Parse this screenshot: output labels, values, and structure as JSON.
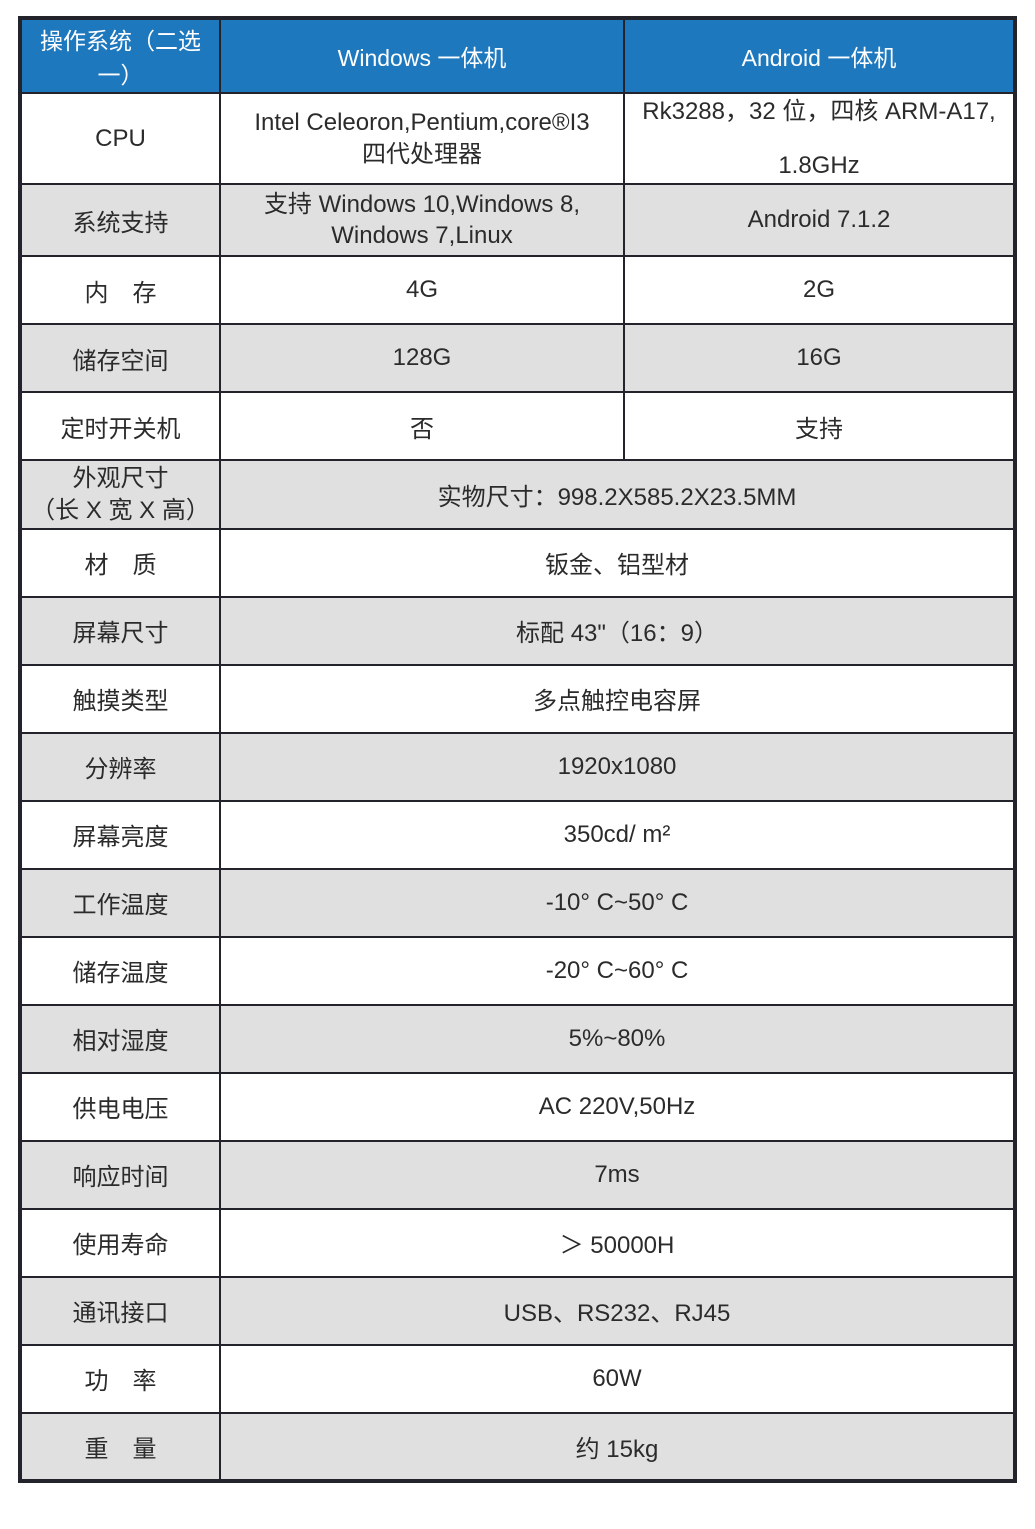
{
  "colors": {
    "header_bg": "#1E78BE",
    "header_text": "#FFFFFF",
    "row_white": "#FFFFFF",
    "row_gray": "#E0E0E0",
    "border": "#23232B",
    "text": "#2B2B2B"
  },
  "table": {
    "header": {
      "os": "操作系统（二选一）",
      "windows": "Windows 一体机",
      "android": "Android 一体机"
    },
    "rows": [
      {
        "label": "CPU",
        "windows_line1": "Intel Celeoron,Pentium,core®I3",
        "windows_line2": "四代处理器",
        "android_line1": "Rk3288，32 位，四核 ARM-A17,",
        "android_line2": "1.8GHz"
      },
      {
        "label": "系统支持",
        "windows_line1": "支持 Windows 10,Windows 8,",
        "windows_line2": "Windows 7,Linux",
        "android": "Android 7.1.2"
      },
      {
        "label": "内　存",
        "windows": "4G",
        "android": "2G"
      },
      {
        "label": "储存空间",
        "windows": "128G",
        "android": "16G"
      },
      {
        "label": "定时开关机",
        "windows": "否",
        "android": "支持"
      },
      {
        "label_line1": "外观尺寸",
        "label_line2": "（长 X 宽 X 高）",
        "value": "实物尺寸：998.2X585.2X23.5MM"
      },
      {
        "label": "材　质",
        "value": "钣金、铝型材"
      },
      {
        "label": "屏幕尺寸",
        "value": "标配 43\"（16：9）"
      },
      {
        "label": "触摸类型",
        "value": "多点触控电容屏"
      },
      {
        "label": "分辨率",
        "value": "1920x1080"
      },
      {
        "label": "屏幕亮度",
        "value": "350cd/ m²"
      },
      {
        "label": "工作温度",
        "value": "-10° C~50° C"
      },
      {
        "label": "储存温度",
        "value": "-20° C~60° C"
      },
      {
        "label": "相对湿度",
        "value": "5%~80%"
      },
      {
        "label": "供电电压",
        "value": "AC 220V,50Hz"
      },
      {
        "label": "响应时间",
        "value": "7ms"
      },
      {
        "label": "使用寿命",
        "value": "＞ 50000H"
      },
      {
        "label": "通讯接口",
        "value": "USB、RS232、RJ45"
      },
      {
        "label": "功　率",
        "value": "60W"
      },
      {
        "label": "重　量",
        "value": "约 15kg"
      }
    ]
  }
}
